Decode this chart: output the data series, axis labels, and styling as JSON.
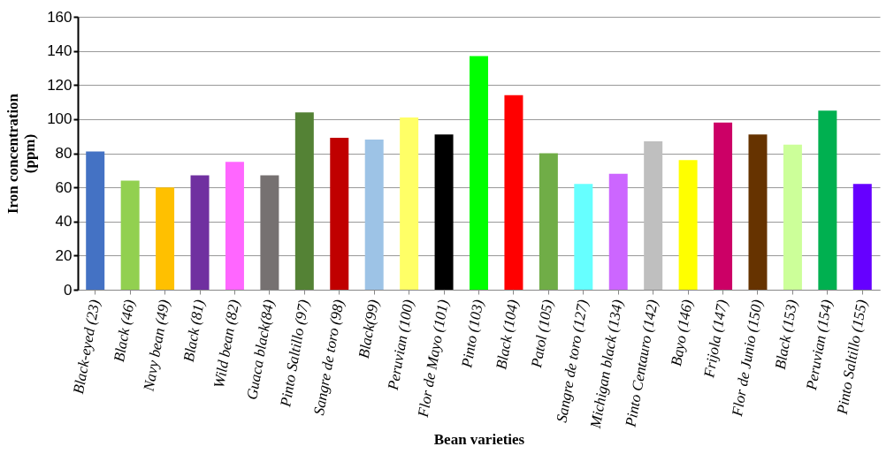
{
  "chart_data": {
    "type": "bar",
    "xlabel": "Bean varieties",
    "ylabel": "Iron concentration\n(ppm)",
    "categories": [
      "Black-eyed (23)",
      "Black (46)",
      "Navy bean (49)",
      "Black (81)",
      "Wild bean (82)",
      "Guaca black(84)",
      "Pinto Saltillo (97)",
      "Sangre de toro (98)",
      "Black(99)",
      "Peruvian (100)",
      "Flor de Mayo (101)",
      "Pinto (103)",
      "Black (104)",
      "Patol (105)",
      "Sangre de toro (127)",
      "Michigan black (134)",
      "Pinto Centauro (142)",
      "Bayo (146)",
      "Frijola (147)",
      "Flor de Junio (150)",
      "Black (153)",
      "Peruvian (154)",
      "Pinto Saltillo (155)"
    ],
    "values": [
      81,
      64,
      60,
      67,
      75,
      67,
      104,
      89,
      88,
      101,
      91,
      137,
      114,
      80,
      62,
      68,
      87,
      76,
      98,
      91,
      85,
      105,
      62
    ],
    "colors": [
      "#4472c4",
      "#92d050",
      "#ffc000",
      "#7030a0",
      "#ff66ff",
      "#767171",
      "#548235",
      "#c00000",
      "#9dc3e6",
      "#ffff66",
      "#000000",
      "#00ff00",
      "#ff0000",
      "#70ad47",
      "#66ffff",
      "#cc66ff",
      "#bfbfbf",
      "#ffff00",
      "#cc0066",
      "#663300",
      "#ccff99",
      "#00b050",
      "#6600ff"
    ],
    "ylim": [
      0,
      160
    ],
    "yticks": [
      0,
      20,
      40,
      60,
      80,
      100,
      120,
      140,
      160
    ],
    "grid": "y",
    "legend": false
  }
}
